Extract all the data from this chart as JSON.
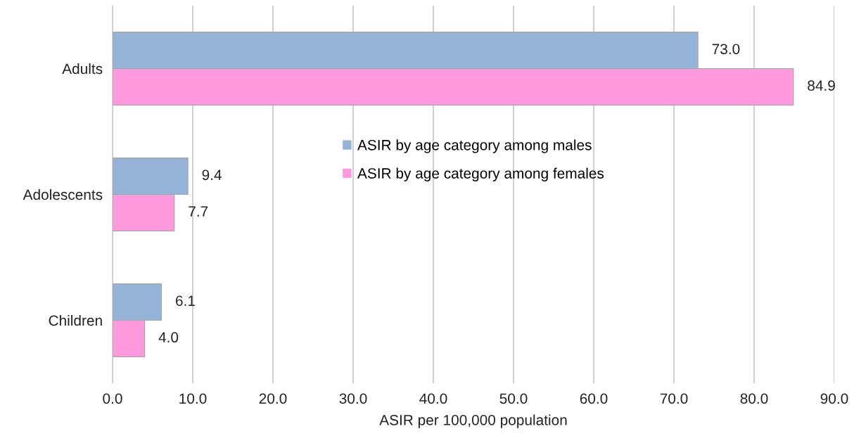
{
  "chart_data": {
    "type": "bar",
    "orientation": "horizontal",
    "xlabel": "ASIR per 100,000 population",
    "categories": [
      "Adults",
      "Adolescents",
      "Children"
    ],
    "series": [
      {
        "name": "ASIR by age category among males",
        "color": "#95b3d7",
        "values": [
          73.0,
          9.4,
          6.1
        ],
        "value_labels": [
          "73.0",
          "9.4",
          "6.1"
        ]
      },
      {
        "name": "ASIR by age category among females",
        "color": "#ff99dd",
        "values": [
          84.9,
          7.7,
          4.0
        ],
        "value_labels": [
          "84.9",
          "7.7",
          "4.0"
        ]
      }
    ],
    "xlim": [
      0,
      90
    ],
    "xticks": [
      {
        "value": 0,
        "label": "0.0"
      },
      {
        "value": 10,
        "label": "10.0"
      },
      {
        "value": 20,
        "label": "20.0"
      },
      {
        "value": 30,
        "label": "30.0"
      },
      {
        "value": 40,
        "label": "40.0"
      },
      {
        "value": 50,
        "label": "50.0"
      },
      {
        "value": 60,
        "label": "60.0"
      },
      {
        "value": 70,
        "label": "70.0"
      },
      {
        "value": 80,
        "label": "80.0"
      },
      {
        "value": 90,
        "label": "90.0"
      }
    ],
    "grid": "x",
    "legend": "center"
  }
}
